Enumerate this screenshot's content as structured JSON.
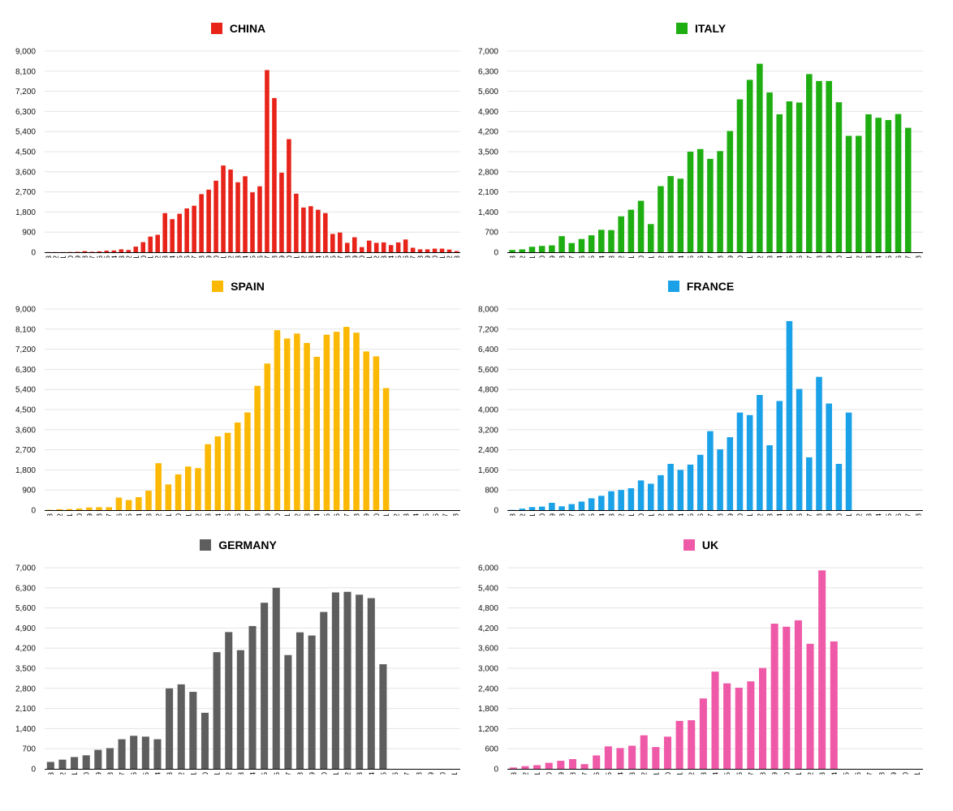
{
  "chart_data": [
    {
      "type": "bar",
      "title": "CHINA",
      "color": "#e8231a",
      "ylim": [
        0,
        9000
      ],
      "yticks": [
        "0",
        "900",
        "1,800",
        "2,700",
        "3,600",
        "4,500",
        "5,400",
        "6,300",
        "7,200",
        "8,100",
        "9,000"
      ],
      "categories": [
        "-13",
        "-12",
        "-11",
        "-10",
        "-9",
        "-8",
        "-7",
        "-6",
        "-5",
        "-4",
        "-3",
        "-2",
        "-1",
        "0",
        "1",
        "2",
        "3",
        "4",
        "5",
        "6",
        "7",
        "8",
        "9",
        "10",
        "11",
        "12",
        "13",
        "14",
        "15",
        "16",
        "17",
        "18",
        "19",
        "20",
        "21",
        "22",
        "23",
        "24",
        "25",
        "26",
        "27",
        "28",
        "29",
        "30",
        "31",
        "32",
        "33",
        "34",
        "35",
        "36",
        "37",
        "38",
        "39",
        "40",
        "41",
        "42",
        "43"
      ],
      "values": [
        5,
        5,
        5,
        10,
        20,
        50,
        20,
        40,
        70,
        80,
        130,
        100,
        250,
        450,
        700,
        780,
        1750,
        1480,
        1720,
        1960,
        2080,
        2600,
        2800,
        3200,
        3880,
        3700,
        3130,
        3400,
        2680,
        2950,
        8150,
        6900,
        3560,
        5060,
        2620,
        2000,
        2060,
        1900,
        1750,
        820,
        880,
        420,
        670,
        230,
        520,
        420,
        440,
        320,
        440,
        570,
        200,
        130,
        130,
        160,
        160,
        120,
        50
      ],
      "xlabel": "",
      "ylabel": ""
    },
    {
      "type": "bar",
      "title": "ITALY",
      "color": "#1fae12",
      "ylim": [
        0,
        7000
      ],
      "yticks": [
        "0",
        "700",
        "1,400",
        "2,100",
        "2,800",
        "3,500",
        "4,200",
        "4,900",
        "5,600",
        "6,300",
        "7,000"
      ],
      "categories": [
        "-13",
        "-12",
        "-11",
        "-10",
        "-9",
        "-8",
        "-7",
        "-6",
        "-5",
        "-4",
        "-3",
        "-2",
        "-1",
        "0",
        "1",
        "2",
        "3",
        "4",
        "5",
        "6",
        "7",
        "8",
        "9",
        "10",
        "11",
        "12",
        "13",
        "14",
        "15",
        "16",
        "17",
        "18",
        "19",
        "20",
        "21",
        "22",
        "23",
        "24",
        "25",
        "26",
        "27",
        "28"
      ],
      "values": [
        80,
        100,
        190,
        220,
        240,
        560,
        320,
        460,
        590,
        780,
        770,
        1250,
        1480,
        1790,
        980,
        2300,
        2650,
        2560,
        3500,
        3590,
        3250,
        3520,
        4220,
        5320,
        6000,
        6560,
        5560,
        4800,
        5250,
        5210,
        6200,
        5960,
        5960,
        5220,
        4050,
        4050,
        4800,
        4680,
        4600,
        4810,
        4330,
        0
      ],
      "xlabel": "",
      "ylabel": ""
    },
    {
      "type": "bar",
      "title": "SPAIN",
      "color": "#fbb906",
      "ylim": [
        0,
        9000
      ],
      "yticks": [
        "0",
        "900",
        "1,800",
        "2,700",
        "3,600",
        "4,500",
        "5,400",
        "6,300",
        "7,200",
        "8,100",
        "9,000"
      ],
      "categories": [
        "-13",
        "-12",
        "-11",
        "-10",
        "-9",
        "-8",
        "-7",
        "-6",
        "-5",
        "-4",
        "-3",
        "-2",
        "-1",
        "0",
        "1",
        "2",
        "3",
        "4",
        "5",
        "6",
        "7",
        "8",
        "9",
        "10",
        "11",
        "12",
        "13",
        "14",
        "15",
        "16",
        "17",
        "18",
        "19",
        "20",
        "21",
        "22",
        "23",
        "24",
        "25",
        "26",
        "27",
        "28"
      ],
      "values": [
        15,
        40,
        50,
        70,
        120,
        130,
        130,
        560,
        450,
        580,
        870,
        2100,
        1150,
        1600,
        1950,
        1880,
        2950,
        3300,
        3460,
        3920,
        4370,
        5560,
        6560,
        8050,
        7680,
        7900,
        7480,
        6860,
        7850,
        7980,
        8200,
        7940,
        7100,
        6880,
        5460,
        0,
        0,
        0,
        0,
        0,
        0,
        0
      ],
      "xlabel": "",
      "ylabel": ""
    },
    {
      "type": "bar",
      "title": "FRANCE",
      "color": "#1aa1e8",
      "ylim": [
        0,
        8000
      ],
      "yticks": [
        "0",
        "800",
        "1,600",
        "2,400",
        "3,200",
        "4,000",
        "4,800",
        "5,600",
        "6,400",
        "7,200",
        "8,000"
      ],
      "categories": [
        "-13",
        "-12",
        "-11",
        "-10",
        "-9",
        "-8",
        "-7",
        "-6",
        "-5",
        "-4",
        "-3",
        "-2",
        "-1",
        "0",
        "1",
        "2",
        "3",
        "4",
        "5",
        "6",
        "7",
        "8",
        "9",
        "10",
        "11",
        "12",
        "13",
        "14",
        "15",
        "16",
        "17",
        "18",
        "19",
        "20",
        "21",
        "22",
        "23",
        "24",
        "25",
        "26",
        "27",
        "28"
      ],
      "values": [
        10,
        60,
        120,
        140,
        290,
        150,
        240,
        340,
        470,
        570,
        750,
        800,
        870,
        1180,
        1050,
        1390,
        1840,
        1600,
        1810,
        2200,
        3140,
        2420,
        2900,
        3880,
        3780,
        4580,
        2580,
        4340,
        7520,
        4820,
        2100,
        5300,
        4240,
        1840,
        3880,
        0,
        0,
        0,
        0,
        0,
        0,
        0
      ],
      "xlabel": "",
      "ylabel": ""
    },
    {
      "type": "bar",
      "title": "GERMANY",
      "color": "#5e5e5e",
      "ylim": [
        0,
        7000
      ],
      "yticks": [
        "0",
        "700",
        "1,400",
        "2,100",
        "2,800",
        "3,500",
        "4,200",
        "4,900",
        "5,600",
        "6,300",
        "7,000"
      ],
      "categories": [
        "-13",
        "-12",
        "-11",
        "-10",
        "-9",
        "-8",
        "-7",
        "-6",
        "-5",
        "-4",
        "-3",
        "-2",
        "-1",
        "0",
        "1",
        "2",
        "3",
        "4",
        "5",
        "6",
        "7",
        "8",
        "9",
        "10",
        "11",
        "12",
        "13",
        "14",
        "15",
        "16",
        "17",
        "18",
        "19",
        "20",
        "21"
      ],
      "values": [
        240,
        320,
        410,
        470,
        660,
        720,
        1030,
        1150,
        1120,
        1030,
        2800,
        2940,
        2680,
        1950,
        4060,
        4760,
        4130,
        4970,
        5780,
        6300,
        3960,
        4750,
        4640,
        5460,
        6140,
        6160,
        6060,
        5940,
        3640,
        0,
        0,
        0,
        0,
        0,
        0
      ],
      "xlabel": "",
      "ylabel": ""
    },
    {
      "type": "bar",
      "title": "UK",
      "color": "#ef5aa8",
      "ylim": [
        0,
        6000
      ],
      "yticks": [
        "0",
        "600",
        "1,200",
        "1,800",
        "2,400",
        "3,000",
        "3,600",
        "4,200",
        "4,800",
        "5,400",
        "6,000"
      ],
      "categories": [
        "-13",
        "-12",
        "-11",
        "-10",
        "-9",
        "-8",
        "-7",
        "-6",
        "-5",
        "-4",
        "-3",
        "-2",
        "-1",
        "0",
        "1",
        "2",
        "3",
        "4",
        "5",
        "6",
        "7",
        "8",
        "9",
        "10",
        "11",
        "12",
        "13",
        "14",
        "15",
        "16",
        "17",
        "18",
        "19",
        "20",
        "21"
      ],
      "values": [
        40,
        80,
        110,
        180,
        240,
        290,
        140,
        400,
        670,
        620,
        690,
        1000,
        650,
        960,
        1430,
        1450,
        2100,
        2900,
        2550,
        2420,
        2610,
        3010,
        4330,
        4240,
        4430,
        3730,
        5920,
        3800,
        0,
        0,
        0,
        0,
        0,
        0,
        0
      ],
      "xlabel": "",
      "ylabel": ""
    }
  ]
}
